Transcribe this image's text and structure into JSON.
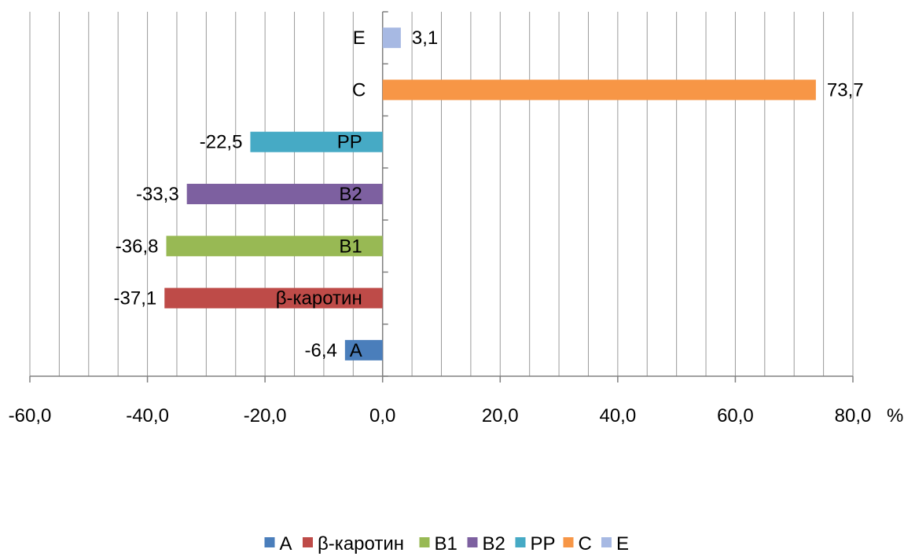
{
  "chart_data": {
    "type": "bar",
    "orientation": "horizontal",
    "categories": [
      "A",
      "β-каротин",
      "B1",
      "B2",
      "PP",
      "C",
      "E"
    ],
    "values": [
      -6.4,
      -37.1,
      -36.8,
      -33.3,
      -22.5,
      73.7,
      3.1
    ],
    "value_labels": [
      "-6,4",
      "-37,1",
      "-36,8",
      "-33,3",
      "-22,5",
      "73,7",
      "3,1"
    ],
    "colors": [
      "#4A7EBB",
      "#BE4B48",
      "#98B954",
      "#7D60A0",
      "#46AAC5",
      "#F79646",
      "#A7B9E3"
    ],
    "xlim": [
      -60,
      80
    ],
    "x_ticks": [
      -60,
      -40,
      -20,
      0,
      20,
      40,
      60,
      80
    ],
    "x_tick_labels": [
      "-60,0",
      "-40,0",
      "-20,0",
      "0,0",
      "20,0",
      "40,0",
      "60,0",
      "80,0"
    ],
    "x_unit": "%",
    "vertical_gridlines": true,
    "category_labels_at_zero_axis": true,
    "legend_position": "bottom"
  }
}
